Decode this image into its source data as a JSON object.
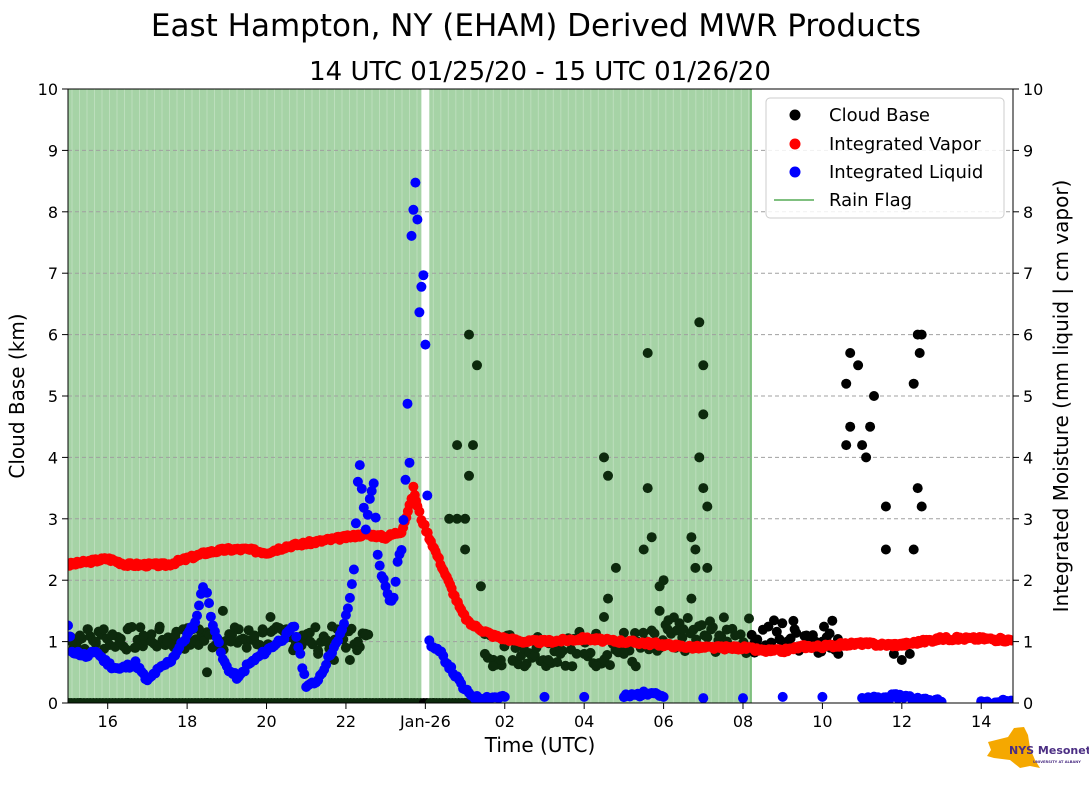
{
  "chart_data": {
    "type": "scatter",
    "title": "East Hampton, NY (EHAM) Derived MWR Products",
    "subtitle": "14 UTC 01/25/20 - 15 UTC 01/26/20",
    "xlabel": "Time (UTC)",
    "ylabel_left": "Cloud Base (km)",
    "ylabel_right": "Integrated Moisture (mm liquid | cm vapor)",
    "xlim": [
      15.0,
      38.8
    ],
    "ylim": [
      0,
      10
    ],
    "x_ticks": [
      {
        "value": 16,
        "label": "16"
      },
      {
        "value": 18,
        "label": "18"
      },
      {
        "value": 20,
        "label": "20"
      },
      {
        "value": 22,
        "label": "22"
      },
      {
        "value": 24,
        "label": "Jan-26"
      },
      {
        "value": 26,
        "label": "02"
      },
      {
        "value": 28,
        "label": "04"
      },
      {
        "value": 30,
        "label": "06"
      },
      {
        "value": 32,
        "label": "08"
      },
      {
        "value": 34,
        "label": "10"
      },
      {
        "value": 36,
        "label": "12"
      },
      {
        "value": 38,
        "label": "14"
      }
    ],
    "y_ticks": [
      0,
      1,
      2,
      3,
      4,
      5,
      6,
      7,
      8,
      9,
      10
    ],
    "grid": "dashed horizontal",
    "legend_position": "top-right",
    "legend": [
      "Cloud Base",
      "Integrated Vapor",
      "Integrated Liquid",
      "Rain Flag"
    ],
    "colors": {
      "cloud_base": "#000000",
      "vapor": "#ff0000",
      "liquid": "#0000ff",
      "rain_flag": "#80c080",
      "grid": "#a0a0a0"
    },
    "rain_flag_periods": [
      [
        15.0,
        23.9
      ],
      [
        24.1,
        31.1
      ],
      [
        31.1,
        32.2
      ]
    ],
    "rain_flag_isolated": [
      32.2
    ],
    "series": [
      {
        "name": "Cloud Base",
        "points": [
          [
            15.0,
            0
          ],
          [
            15.3,
            0
          ],
          [
            16.5,
            0
          ],
          [
            17.5,
            0
          ],
          [
            18.5,
            0
          ],
          [
            19.5,
            0
          ],
          [
            20.5,
            0
          ],
          [
            21.5,
            0
          ],
          [
            22.5,
            0
          ],
          [
            23.5,
            0
          ],
          [
            24.2,
            0
          ],
          [
            25.0,
            0
          ],
          [
            15.1,
            1.0
          ],
          [
            15.3,
            1.1
          ],
          [
            15.5,
            1.2
          ],
          [
            15.7,
            1.0
          ],
          [
            15.9,
            1.2
          ],
          [
            16.1,
            1.1
          ],
          [
            16.3,
            1.0
          ],
          [
            16.5,
            1.2
          ],
          [
            16.7,
            0.9
          ],
          [
            16.9,
            1.1
          ],
          [
            17.1,
            1.0
          ],
          [
            17.3,
            1.2
          ],
          [
            17.5,
            1.0
          ],
          [
            17.7,
            1.1
          ],
          [
            17.9,
            1.2
          ],
          [
            18.1,
            1.0
          ],
          [
            18.3,
            1.2
          ],
          [
            18.5,
            0.5
          ],
          [
            18.7,
            1.1
          ],
          [
            18.9,
            1.5
          ],
          [
            19.1,
            1.0
          ],
          [
            19.3,
            1.2
          ],
          [
            19.5,
            0.9
          ],
          [
            19.7,
            1.1
          ],
          [
            19.9,
            1.2
          ],
          [
            20.1,
            1.4
          ],
          [
            20.3,
            1.0
          ],
          [
            20.5,
            1.2
          ],
          [
            20.7,
            0.9
          ],
          [
            20.9,
            1.1
          ],
          [
            21.1,
            1.0
          ],
          [
            21.3,
            0.8
          ],
          [
            21.5,
            1.0
          ],
          [
            21.7,
            0.7
          ],
          [
            21.9,
            1.2
          ],
          [
            22.1,
            0.7
          ],
          [
            22.3,
            1.0
          ],
          [
            22.5,
            1.1
          ],
          [
            24.6,
            3.0
          ],
          [
            24.8,
            3.0
          ],
          [
            25.0,
            2.5
          ],
          [
            24.8,
            4.2
          ],
          [
            25.1,
            6.0
          ],
          [
            25.2,
            4.2
          ],
          [
            25.1,
            3.7
          ],
          [
            25.3,
            5.5
          ],
          [
            25.4,
            1.9
          ],
          [
            25.0,
            3.0
          ],
          [
            25.5,
            0.8
          ],
          [
            25.7,
            0.6
          ],
          [
            25.9,
            0.7
          ],
          [
            26.2,
            0.7
          ],
          [
            26.5,
            0.6
          ],
          [
            26.8,
            0.9
          ],
          [
            27.1,
            0.7
          ],
          [
            27.4,
            0.8
          ],
          [
            27.7,
            0.6
          ],
          [
            28.0,
            0.8
          ],
          [
            28.3,
            0.6
          ],
          [
            28.5,
            4.0
          ],
          [
            28.6,
            3.7
          ],
          [
            28.6,
            1.7
          ],
          [
            28.5,
            1.4
          ],
          [
            28.8,
            2.2
          ],
          [
            29.0,
            0.8
          ],
          [
            29.3,
            0.6
          ],
          [
            29.5,
            2.5
          ],
          [
            29.6,
            5.7
          ],
          [
            29.6,
            3.5
          ],
          [
            29.7,
            2.7
          ],
          [
            29.9,
            1.9
          ],
          [
            30.0,
            2.0
          ],
          [
            29.9,
            1.5
          ],
          [
            30.1,
            1.2
          ],
          [
            30.3,
            0.9
          ],
          [
            30.5,
            1.2
          ],
          [
            30.7,
            2.7
          ],
          [
            30.8,
            2.5
          ],
          [
            30.8,
            2.2
          ],
          [
            30.9,
            6.2
          ],
          [
            30.9,
            4.0
          ],
          [
            31.0,
            5.5
          ],
          [
            31.0,
            4.7
          ],
          [
            31.0,
            3.5
          ],
          [
            31.1,
            3.2
          ],
          [
            31.1,
            2.2
          ],
          [
            30.7,
            1.7
          ],
          [
            31.2,
            1.2
          ],
          [
            31.4,
            1.1
          ],
          [
            31.6,
            1.0
          ],
          [
            31.8,
            1.1
          ],
          [
            32.0,
            0.9
          ],
          [
            32.3,
            1.0
          ],
          [
            32.6,
            0.9
          ],
          [
            33.0,
            0.9
          ],
          [
            33.3,
            1.2
          ],
          [
            33.6,
            1.1
          ],
          [
            34.0,
            1.0
          ],
          [
            34.2,
            0.9
          ],
          [
            34.4,
            0.8
          ],
          [
            34.6,
            5.2
          ],
          [
            34.7,
            5.7
          ],
          [
            34.7,
            4.5
          ],
          [
            34.6,
            4.2
          ],
          [
            34.9,
            5.5
          ],
          [
            35.0,
            4.2
          ],
          [
            35.1,
            4.0
          ],
          [
            35.2,
            4.5
          ],
          [
            35.3,
            5.0
          ],
          [
            35.6,
            3.2
          ],
          [
            35.6,
            2.5
          ],
          [
            35.8,
            0.8
          ],
          [
            36.0,
            0.7
          ],
          [
            36.2,
            0.8
          ],
          [
            36.3,
            5.2
          ],
          [
            36.3,
            2.5
          ],
          [
            36.4,
            6.0
          ],
          [
            36.5,
            6.0
          ],
          [
            36.45,
            5.7
          ],
          [
            36.4,
            3.5
          ],
          [
            36.5,
            3.2
          ]
        ]
      },
      {
        "name": "Integrated Vapor",
        "points": [
          [
            15.0,
            2.25
          ],
          [
            15.5,
            2.3
          ],
          [
            16.0,
            2.35
          ],
          [
            16.5,
            2.25
          ],
          [
            17.0,
            2.25
          ],
          [
            17.5,
            2.25
          ],
          [
            18.0,
            2.35
          ],
          [
            18.5,
            2.45
          ],
          [
            19.0,
            2.5
          ],
          [
            19.5,
            2.5
          ],
          [
            20.0,
            2.45
          ],
          [
            20.5,
            2.55
          ],
          [
            21.0,
            2.6
          ],
          [
            21.5,
            2.65
          ],
          [
            22.0,
            2.7
          ],
          [
            22.5,
            2.75
          ],
          [
            23.0,
            2.7
          ],
          [
            23.4,
            2.8
          ],
          [
            23.6,
            3.2
          ],
          [
            23.7,
            3.5
          ],
          [
            23.8,
            3.2
          ],
          [
            23.9,
            3.0
          ],
          [
            24.1,
            2.7
          ],
          [
            24.3,
            2.4
          ],
          [
            24.5,
            2.1
          ],
          [
            24.7,
            1.8
          ],
          [
            24.9,
            1.5
          ],
          [
            25.1,
            1.3
          ],
          [
            25.4,
            1.2
          ],
          [
            25.7,
            1.1
          ],
          [
            26.0,
            1.05
          ],
          [
            26.5,
            1.0
          ],
          [
            27.0,
            1.0
          ],
          [
            27.5,
            1.02
          ],
          [
            28.0,
            1.05
          ],
          [
            28.5,
            1.02
          ],
          [
            29.0,
            1.0
          ],
          [
            29.5,
            0.98
          ],
          [
            30.0,
            0.95
          ],
          [
            30.5,
            0.92
          ],
          [
            31.0,
            0.9
          ],
          [
            31.5,
            0.9
          ],
          [
            32.0,
            0.9
          ],
          [
            32.5,
            0.85
          ],
          [
            33.0,
            0.85
          ],
          [
            33.5,
            0.92
          ],
          [
            34.0,
            0.92
          ],
          [
            34.5,
            0.95
          ],
          [
            35.0,
            0.97
          ],
          [
            35.5,
            0.95
          ],
          [
            36.0,
            0.95
          ],
          [
            36.5,
            1.0
          ],
          [
            37.0,
            1.05
          ],
          [
            37.5,
            1.05
          ],
          [
            38.0,
            1.05
          ],
          [
            38.8,
            1.02
          ]
        ]
      },
      {
        "name": "Integrated Liquid",
        "points": [
          [
            15.0,
            1.25
          ],
          [
            15.1,
            0.85
          ],
          [
            15.3,
            0.8
          ],
          [
            15.5,
            0.75
          ],
          [
            15.7,
            0.85
          ],
          [
            15.9,
            0.7
          ],
          [
            16.1,
            0.6
          ],
          [
            16.3,
            0.55
          ],
          [
            16.5,
            0.6
          ],
          [
            16.7,
            0.65
          ],
          [
            16.9,
            0.45
          ],
          [
            17.0,
            0.35
          ],
          [
            17.2,
            0.5
          ],
          [
            17.4,
            0.6
          ],
          [
            17.6,
            0.7
          ],
          [
            17.8,
            0.9
          ],
          [
            18.0,
            1.1
          ],
          [
            18.2,
            1.3
          ],
          [
            18.4,
            1.9
          ],
          [
            18.5,
            1.8
          ],
          [
            18.6,
            1.4
          ],
          [
            18.7,
            1.2
          ],
          [
            18.9,
            0.7
          ],
          [
            19.1,
            0.5
          ],
          [
            19.3,
            0.4
          ],
          [
            19.5,
            0.6
          ],
          [
            19.7,
            0.7
          ],
          [
            19.9,
            0.8
          ],
          [
            20.1,
            0.9
          ],
          [
            20.3,
            1.0
          ],
          [
            20.5,
            1.1
          ],
          [
            20.7,
            1.25
          ],
          [
            20.9,
            0.6
          ],
          [
            21.0,
            0.3
          ],
          [
            21.2,
            0.3
          ],
          [
            21.4,
            0.5
          ],
          [
            21.6,
            0.8
          ],
          [
            21.8,
            1.0
          ],
          [
            22.0,
            1.4
          ],
          [
            22.1,
            1.7
          ],
          [
            22.2,
            2.2
          ],
          [
            22.25,
            2.9
          ],
          [
            22.3,
            3.6
          ],
          [
            22.35,
            3.9
          ],
          [
            22.4,
            3.5
          ],
          [
            22.5,
            2.8
          ],
          [
            22.6,
            3.3
          ],
          [
            22.7,
            3.6
          ],
          [
            22.8,
            2.4
          ],
          [
            22.9,
            2.1
          ],
          [
            23.0,
            1.9
          ],
          [
            23.1,
            1.7
          ],
          [
            23.2,
            1.7
          ],
          [
            23.3,
            2.3
          ],
          [
            23.4,
            2.5
          ],
          [
            23.45,
            3.0
          ],
          [
            23.5,
            3.6
          ],
          [
            23.55,
            4.9
          ],
          [
            23.6,
            3.9
          ],
          [
            23.65,
            7.6
          ],
          [
            23.7,
            8.0
          ],
          [
            23.75,
            8.5
          ],
          [
            23.8,
            7.9
          ],
          [
            23.85,
            6.4
          ],
          [
            23.9,
            6.8
          ],
          [
            23.95,
            7.0
          ],
          [
            24.0,
            5.8
          ],
          [
            24.1,
            1.0
          ],
          [
            24.2,
            0.9
          ],
          [
            24.4,
            0.8
          ],
          [
            24.6,
            0.6
          ],
          [
            24.8,
            0.4
          ],
          [
            25.0,
            0.2
          ],
          [
            25.3,
            0.08
          ],
          [
            26.0,
            0.1
          ],
          [
            27.0,
            0.1
          ],
          [
            28.0,
            0.1
          ],
          [
            29.0,
            0.1
          ],
          [
            29.5,
            0.15
          ],
          [
            29.7,
            0.2
          ],
          [
            30.0,
            0.1
          ],
          [
            31.0,
            0.08
          ],
          [
            32.0,
            0.08
          ],
          [
            33.0,
            0.1
          ],
          [
            34.0,
            0.1
          ],
          [
            35.0,
            0.05
          ],
          [
            35.5,
            0.08
          ],
          [
            36.0,
            0.12
          ],
          [
            36.5,
            0.05
          ],
          [
            37.0,
            0.02
          ],
          [
            38.0,
            0.02
          ],
          [
            38.8,
            0.02
          ]
        ]
      }
    ]
  },
  "logo": {
    "text": "NYS Mesonet",
    "subtext": "UNIVERSITY AT ALBANY"
  }
}
